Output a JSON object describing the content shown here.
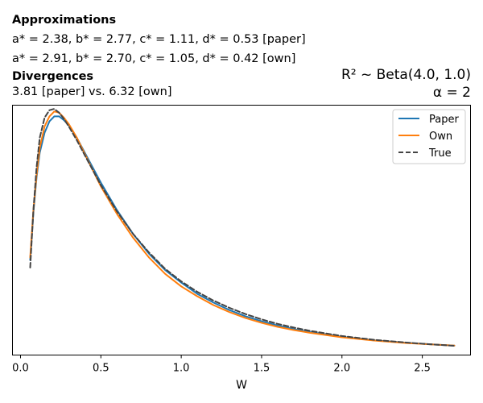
{
  "annotations": {
    "approx_heading": "Approximations",
    "approx_paper": "a* = 2.38, b* = 2.77, c* = 1.11, d* = 0.53 [paper]",
    "approx_own": "a* = 2.91, b* = 2.70, c* = 1.05, d* = 0.42 [own]",
    "div_heading": "Divergences",
    "div_values": "3.81 [paper] vs. 6.32 [own]"
  },
  "chart_data": {
    "type": "line",
    "title_line1": "R² ~ Beta(4.0, 1.0)",
    "title_line2": "α = 2",
    "xlabel": "W",
    "ylabel": "",
    "xlim": [
      -0.05,
      2.8
    ],
    "ylim": [
      0,
      1.0
    ],
    "xticks": [
      0.0,
      0.5,
      1.0,
      1.5,
      2.0,
      2.5
    ],
    "xtick_labels": [
      "0.0",
      "0.5",
      "1.0",
      "1.5",
      "2.0",
      "2.5"
    ],
    "yticks_visible": false,
    "legend_position": "top-right",
    "series": [
      {
        "name": "Paper",
        "color": "#1f77b4",
        "dashed": false,
        "x": [
          0.06,
          0.08,
          0.1,
          0.12,
          0.15,
          0.18,
          0.21,
          0.24,
          0.27,
          0.3,
          0.35,
          0.4,
          0.5,
          0.6,
          0.7,
          0.8,
          0.9,
          1.0,
          1.1,
          1.2,
          1.3,
          1.4,
          1.5,
          1.6,
          1.7,
          1.8,
          2.0,
          2.2,
          2.4,
          2.6,
          2.7
        ],
        "y": [
          0.38,
          0.57,
          0.71,
          0.81,
          0.89,
          0.935,
          0.955,
          0.955,
          0.94,
          0.92,
          0.87,
          0.81,
          0.69,
          0.58,
          0.485,
          0.405,
          0.34,
          0.29,
          0.245,
          0.21,
          0.18,
          0.155,
          0.135,
          0.118,
          0.104,
          0.092,
          0.073,
          0.059,
          0.049,
          0.041,
          0.038
        ]
      },
      {
        "name": "Own",
        "color": "#ff7f0e",
        "dashed": false,
        "x": [
          0.06,
          0.08,
          0.1,
          0.12,
          0.15,
          0.18,
          0.21,
          0.24,
          0.27,
          0.3,
          0.35,
          0.4,
          0.5,
          0.6,
          0.7,
          0.8,
          0.9,
          1.0,
          1.1,
          1.2,
          1.3,
          1.4,
          1.5,
          1.6,
          1.7,
          1.8,
          2.0,
          2.2,
          2.4,
          2.6,
          2.7
        ],
        "y": [
          0.39,
          0.58,
          0.72,
          0.83,
          0.915,
          0.955,
          0.975,
          0.97,
          0.95,
          0.925,
          0.87,
          0.805,
          0.675,
          0.565,
          0.47,
          0.39,
          0.325,
          0.275,
          0.235,
          0.2,
          0.172,
          0.148,
          0.129,
          0.113,
          0.1,
          0.089,
          0.071,
          0.058,
          0.048,
          0.041,
          0.038
        ]
      },
      {
        "name": "True",
        "color": "#444444",
        "dashed": true,
        "x": [
          0.06,
          0.08,
          0.1,
          0.12,
          0.15,
          0.18,
          0.21,
          0.24,
          0.27,
          0.3,
          0.35,
          0.4,
          0.5,
          0.6,
          0.7,
          0.8,
          0.9,
          1.0,
          1.1,
          1.2,
          1.3,
          1.4,
          1.5,
          1.6,
          1.7,
          1.8,
          2.0,
          2.2,
          2.4,
          2.6,
          2.7
        ],
        "y": [
          0.35,
          0.58,
          0.75,
          0.87,
          0.95,
          0.98,
          0.985,
          0.97,
          0.945,
          0.915,
          0.86,
          0.8,
          0.68,
          0.575,
          0.485,
          0.41,
          0.345,
          0.295,
          0.253,
          0.218,
          0.189,
          0.164,
          0.143,
          0.125,
          0.11,
          0.097,
          0.076,
          0.061,
          0.05,
          0.041,
          0.037
        ]
      }
    ]
  }
}
